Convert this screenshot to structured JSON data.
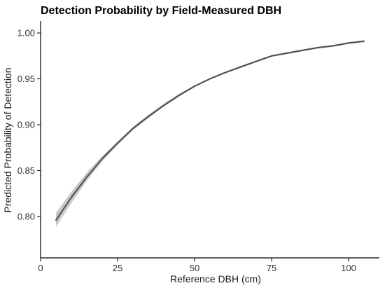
{
  "chart_data": {
    "type": "line",
    "title": "Detection Probability by Field-Measured DBH",
    "xlabel": "Reference DBH (cm)",
    "ylabel": "Predicted Probability of Detection",
    "xlim": [
      0,
      110
    ],
    "ylim": [
      0.755,
      1.013
    ],
    "x_ticks": [
      0,
      25,
      50,
      75,
      100
    ],
    "y_ticks": [
      0.8,
      0.85,
      0.9,
      0.95,
      1.0
    ],
    "x_tick_labels": [
      "0",
      "25",
      "50",
      "75",
      "100"
    ],
    "y_tick_labels": [
      "0.80",
      "0.85",
      "0.90",
      "0.95",
      "1.00"
    ],
    "grid": false,
    "legend": false,
    "colors": {
      "line": "#4d4d4d",
      "band": "#c8c8c8"
    },
    "series": [
      {
        "x": [
          5,
          10,
          15,
          20,
          25,
          30,
          35,
          40,
          45,
          50,
          55,
          60,
          65,
          70,
          75,
          80,
          85,
          90,
          95,
          100,
          105
        ],
        "y": [
          0.796,
          0.821,
          0.843,
          0.863,
          0.88,
          0.896,
          0.909,
          0.921,
          0.932,
          0.942,
          0.95,
          0.957,
          0.963,
          0.969,
          0.975,
          0.978,
          0.981,
          0.984,
          0.986,
          0.989,
          0.991
        ],
        "lower": [
          0.789,
          0.815,
          0.839,
          0.86,
          0.878,
          0.894,
          0.907,
          0.92,
          0.931,
          0.941,
          0.949,
          0.956,
          0.962,
          0.968,
          0.974,
          0.977,
          0.98,
          0.983,
          0.985,
          0.988,
          0.99
        ],
        "upper": [
          0.804,
          0.827,
          0.848,
          0.866,
          0.882,
          0.898,
          0.911,
          0.923,
          0.934,
          0.943,
          0.951,
          0.958,
          0.964,
          0.97,
          0.976,
          0.979,
          0.982,
          0.985,
          0.987,
          0.99,
          0.992
        ]
      }
    ]
  }
}
